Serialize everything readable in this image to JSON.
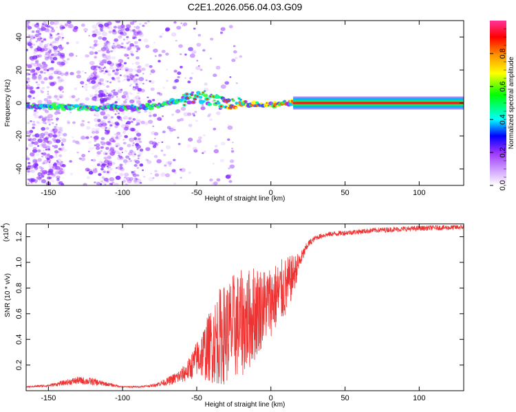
{
  "chart_data": [
    {
      "type": "heatmap",
      "title": "C2E1.2026.056.04.03.G09",
      "xlabel": "Height of straight line (km)",
      "ylabel": "Frequency (Hz)",
      "xlim": [
        -165,
        130
      ],
      "ylim": [
        -50,
        50
      ],
      "xticks": [
        -150,
        -100,
        -50,
        0,
        50,
        100
      ],
      "yticks": [
        -40,
        -20,
        0,
        20,
        40
      ],
      "colorbar": {
        "label": "Normalized spectral amplitude",
        "range": [
          0,
          1
        ],
        "ticks": [
          0.0,
          0.2,
          0.4,
          0.6,
          0.8
        ],
        "tick_labels": [
          "0.0",
          "0.2",
          "0.4",
          "0.6",
          "0.8"
        ],
        "colors": [
          "#ffffff",
          "#cc99ff",
          "#9933ff",
          "#0000ff",
          "#00ffff",
          "#00ff00",
          "#ffff00",
          "#ff8800",
          "#ff0000",
          "#ff3399"
        ]
      },
      "ridge": {
        "description_points_x": [
          -165,
          -150,
          -120,
          -100,
          -80,
          -60,
          -45,
          -35,
          -20,
          -10,
          0,
          10,
          20,
          50,
          100,
          130
        ],
        "description_points_y": [
          -2,
          -2,
          -3,
          -3,
          -2,
          2,
          4,
          0,
          0,
          -1,
          -1,
          0,
          0,
          0,
          0,
          0
        ]
      }
    },
    {
      "type": "line",
      "title": "",
      "xlabel": "Height of straight line (km)",
      "ylabel": "SNR (10 * v/v)",
      "y_multiplier": "(x10",
      "y_multiplier_exp": "4",
      "xlim": [
        -165,
        130
      ],
      "ylim": [
        0,
        1.3
      ],
      "xticks": [
        -150,
        -100,
        -50,
        0,
        50,
        100
      ],
      "yticks": [
        0.2,
        0.4,
        0.6,
        0.8,
        1.0,
        1.2
      ],
      "ytick_labels": [
        "0.2",
        "0.4",
        "0.6",
        "0.8",
        "1.0",
        "1.2"
      ],
      "series": [
        {
          "color": "#ee3333",
          "x": [
            -165,
            -150,
            -140,
            -130,
            -120,
            -110,
            -100,
            -90,
            -80,
            -70,
            -60,
            -55,
            -50,
            -45,
            -40,
            -35,
            -30,
            -25,
            -20,
            -15,
            -10,
            -5,
            0,
            5,
            10,
            15,
            20,
            25,
            30,
            35,
            40,
            50,
            60,
            70,
            80,
            90,
            100,
            110,
            120,
            130
          ],
          "y": [
            0.03,
            0.04,
            0.06,
            0.08,
            0.07,
            0.05,
            0.03,
            0.03,
            0.04,
            0.07,
            0.12,
            0.17,
            0.25,
            0.3,
            0.36,
            0.42,
            0.45,
            0.5,
            0.52,
            0.55,
            0.62,
            0.66,
            0.7,
            0.75,
            0.8,
            0.9,
            1.02,
            1.14,
            1.19,
            1.21,
            1.22,
            1.23,
            1.24,
            1.25,
            1.255,
            1.26,
            1.265,
            1.27,
            1.27,
            1.275
          ],
          "noise_amplitude": [
            0.005,
            0.01,
            0.02,
            0.03,
            0.03,
            0.015,
            0.005,
            0.006,
            0.01,
            0.03,
            0.06,
            0.09,
            0.14,
            0.22,
            0.3,
            0.38,
            0.4,
            0.42,
            0.42,
            0.4,
            0.38,
            0.3,
            0.28,
            0.26,
            0.24,
            0.16,
            0.06,
            0.03,
            0.02,
            0.02,
            0.02,
            0.02,
            0.02,
            0.02,
            0.02,
            0.02,
            0.02,
            0.02,
            0.02,
            0.02
          ]
        }
      ]
    }
  ]
}
